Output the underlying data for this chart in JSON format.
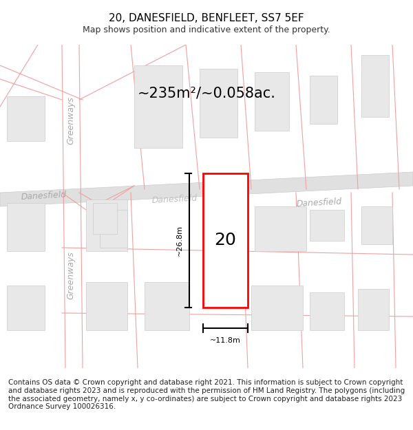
{
  "title_line1": "20, DANESFIELD, BENFLEET, SS7 5EF",
  "title_line2": "Map shows position and indicative extent of the property.",
  "area_text": "~235m²/~0.058ac.",
  "property_number": "20",
  "dim_height": "~26.8m",
  "dim_width": "~11.8m",
  "map_bg": "#ffffff",
  "building_fill": "#e8e8e8",
  "building_edge": "#cccccc",
  "highlight_fill": "#ffffff",
  "highlight_edge": "#ff0000",
  "road_fill": "#e8e8e8",
  "road_edge": "#cccccc",
  "plot_line_color": "#f0a0a0",
  "road_label_color": "#aaaaaa",
  "road_label_size": 9,
  "area_label_size": 15,
  "dim_line_color": "#000000",
  "footer_text": "Contains OS data © Crown copyright and database right 2021. This information is subject to Crown copyright and database rights 2023 and is reproduced with the permission of HM Land Registry. The polygons (including the associated geometry, namely x, y co-ordinates) are subject to Crown copyright and database rights 2023 Ordnance Survey 100026316.",
  "footer_size": 7.5
}
